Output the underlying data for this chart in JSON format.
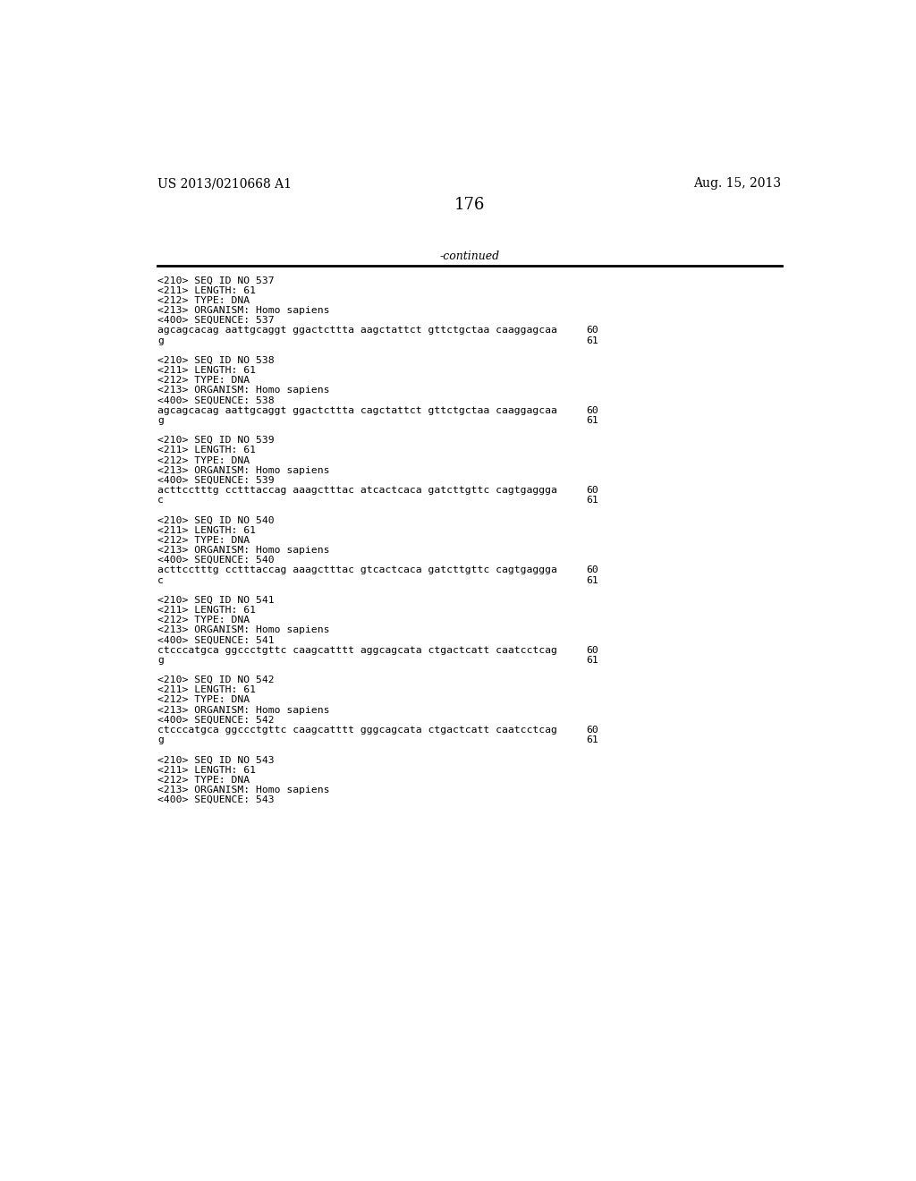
{
  "header_left": "US 2013/0210668 A1",
  "header_right": "Aug. 15, 2013",
  "page_number": "176",
  "continued_label": "-continued",
  "background_color": "#ffffff",
  "text_color": "#000000",
  "sections": [
    {
      "seq_id": "537",
      "length": "61",
      "type": "DNA",
      "organism": "Homo sapiens",
      "sequence_line1": "agcagcacag aattgcaggt ggactcttta aagctattct gttctgctaa caaggagcaa",
      "seq_line1_num": "60",
      "sequence_line2": "g",
      "seq_line2_num": "61"
    },
    {
      "seq_id": "538",
      "length": "61",
      "type": "DNA",
      "organism": "Homo sapiens",
      "sequence_line1": "agcagcacag aattgcaggt ggactcttta cagctattct gttctgctaa caaggagcaa",
      "seq_line1_num": "60",
      "sequence_line2": "g",
      "seq_line2_num": "61"
    },
    {
      "seq_id": "539",
      "length": "61",
      "type": "DNA",
      "organism": "Homo sapiens",
      "sequence_line1": "acttcctttg cctttaccag aaagctttac atcactcaca gatcttgttc cagtgaggga",
      "seq_line1_num": "60",
      "sequence_line2": "c",
      "seq_line2_num": "61"
    },
    {
      "seq_id": "540",
      "length": "61",
      "type": "DNA",
      "organism": "Homo sapiens",
      "sequence_line1": "acttcctttg cctttaccag aaagctttac gtcactcaca gatcttgttc cagtgaggga",
      "seq_line1_num": "60",
      "sequence_line2": "c",
      "seq_line2_num": "61"
    },
    {
      "seq_id": "541",
      "length": "61",
      "type": "DNA",
      "organism": "Homo sapiens",
      "sequence_line1": "ctcccatgca ggccctgttc caagcatttt aggcagcata ctgactcatt caatcctcag",
      "seq_line1_num": "60",
      "sequence_line2": "g",
      "seq_line2_num": "61"
    },
    {
      "seq_id": "542",
      "length": "61",
      "type": "DNA",
      "organism": "Homo sapiens",
      "sequence_line1": "ctcccatgca ggccctgttc caagcatttt gggcagcata ctgactcatt caatcctcag",
      "seq_line1_num": "60",
      "sequence_line2": "g",
      "seq_line2_num": "61"
    },
    {
      "seq_id": "543",
      "length": "61",
      "type": "DNA",
      "organism": "Homo sapiens",
      "sequence_line1": "",
      "seq_line1_num": "",
      "sequence_line2": "",
      "seq_line2_num": ""
    }
  ]
}
